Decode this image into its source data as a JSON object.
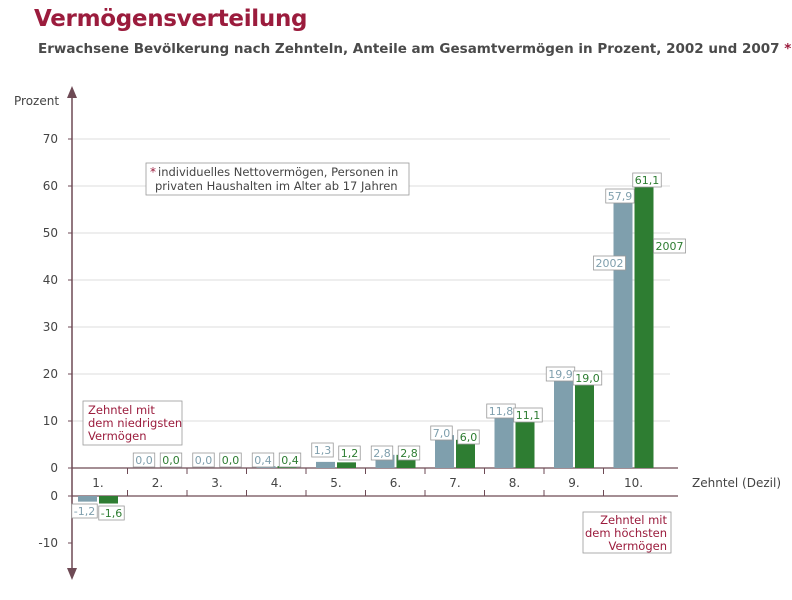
{
  "header": {
    "title": "Vermögensverteilung",
    "subtitle": "Erwachsene Bevölkerung nach Zehnteln, Anteile am Gesamtvermögen in Prozent, 2002 und 2007",
    "footnote_marker": "*"
  },
  "colors": {
    "series_2002": "#7f9fad",
    "series_2007": "#2e7d32",
    "accent": "#9b1c3d",
    "axis": "#6e4a55",
    "grid": "#dddddd"
  },
  "chart_data": {
    "type": "bar",
    "ylabel": "Prozent",
    "xlabel": "Zehntel (Dezil)",
    "ylim": [
      -10,
      70
    ],
    "yticks_top": [
      0,
      10,
      20,
      30,
      40,
      50,
      60,
      70
    ],
    "yticks_bottom": [
      0,
      -10
    ],
    "grid": true,
    "categories": [
      "1.",
      "2.",
      "3.",
      "4.",
      "5.",
      "6.",
      "7.",
      "8.",
      "9.",
      "10."
    ],
    "series": [
      {
        "name": "2002",
        "values": [
          -1.2,
          0.0,
          0.0,
          0.4,
          1.3,
          2.8,
          7.0,
          11.8,
          19.9,
          57.9
        ],
        "labels": [
          "-1,2",
          "0,0",
          "0,0",
          "0,4",
          "1,3",
          "2,8",
          "7,0",
          "11,8",
          "19,9",
          "57,9"
        ]
      },
      {
        "name": "2007",
        "values": [
          -1.6,
          0.0,
          0.0,
          0.4,
          1.2,
          2.8,
          6.0,
          11.1,
          19.0,
          61.1
        ],
        "labels": [
          "-1,6",
          "0,0",
          "0,0",
          "0,4",
          "1,2",
          "2,8",
          "6,0",
          "11,1",
          "19,0",
          "61,1"
        ]
      }
    ],
    "annotations": {
      "footnote": [
        "individuelles Nettovermögen, Personen in",
        "privaten Haushalten im Alter ab 17 Jahren"
      ],
      "lowest": [
        "Zehntel mit",
        "dem niedrigsten",
        "Vermögen"
      ],
      "highest": [
        "Zehntel mit",
        "dem höchsten",
        "Vermögen"
      ]
    }
  }
}
